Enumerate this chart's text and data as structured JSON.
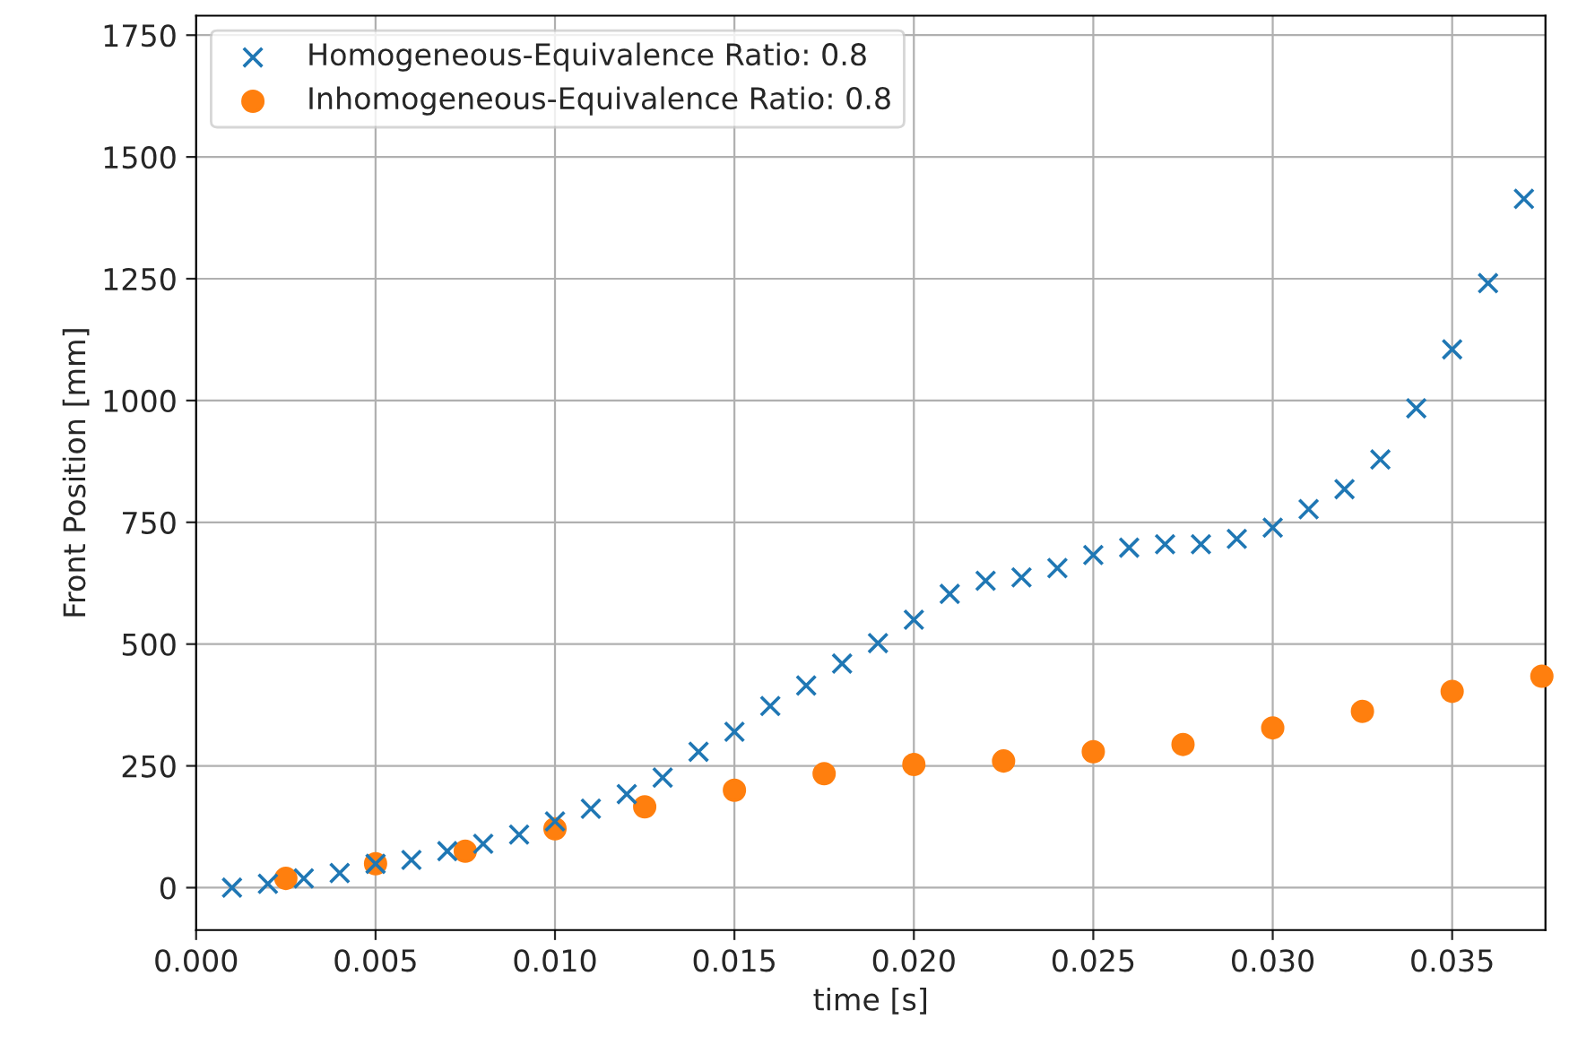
{
  "chart_data": {
    "type": "scatter",
    "xlabel": "time [s]",
    "ylabel": "Front Position [mm]",
    "xlim": [
      0,
      0.0376
    ],
    "ylim": [
      -87,
      1790
    ],
    "xticks": [
      {
        "value": 0,
        "label": "0.000"
      },
      {
        "value": 0.005,
        "label": "0.005"
      },
      {
        "value": 0.01,
        "label": "0.010"
      },
      {
        "value": 0.015,
        "label": "0.015"
      },
      {
        "value": 0.02,
        "label": "0.020"
      },
      {
        "value": 0.025,
        "label": "0.025"
      },
      {
        "value": 0.03,
        "label": "0.030"
      },
      {
        "value": 0.035,
        "label": "0.035"
      }
    ],
    "yticks": [
      0,
      250,
      500,
      750,
      1000,
      1250,
      1500,
      1750
    ],
    "grid": true,
    "legend": "top left",
    "series": [
      {
        "name": "Homogeneous-Equivalence Ratio: 0.8",
        "color": "#1f77b4",
        "marker": "cross",
        "x": [
          0.001,
          0.002,
          0.003,
          0.004,
          0.005,
          0.006,
          0.007,
          0.008,
          0.009,
          0.01,
          0.011,
          0.012,
          0.013,
          0.014,
          0.015,
          0.016,
          0.017,
          0.018,
          0.019,
          0.02,
          0.021,
          0.022,
          0.023,
          0.024,
          0.025,
          0.026,
          0.027,
          0.028,
          0.029,
          0.03,
          0.031,
          0.032,
          0.033,
          0.034,
          0.035,
          0.036,
          0.037
        ],
        "values": [
          0,
          8,
          19,
          30,
          49,
          57,
          75,
          90,
          109,
          136,
          162,
          192,
          226,
          279,
          320,
          373,
          415,
          460,
          502,
          550,
          603,
          630,
          637,
          656,
          683,
          698,
          705,
          705,
          716,
          739,
          777,
          818,
          879,
          984,
          1105,
          1241,
          1414
        ]
      },
      {
        "name": "Inhomogeneous-Equivalence Ratio: 0.8",
        "color": "#ff7f0e",
        "marker": "circle",
        "x": [
          0.0025,
          0.005,
          0.0075,
          0.01,
          0.0125,
          0.015,
          0.0175,
          0.02,
          0.0225,
          0.025,
          0.0275,
          0.03,
          0.0325,
          0.035,
          0.0375
        ],
        "values": [
          19,
          49,
          75,
          121,
          166,
          200,
          234,
          253,
          260,
          279,
          294,
          328,
          362,
          403,
          434
        ]
      }
    ]
  }
}
